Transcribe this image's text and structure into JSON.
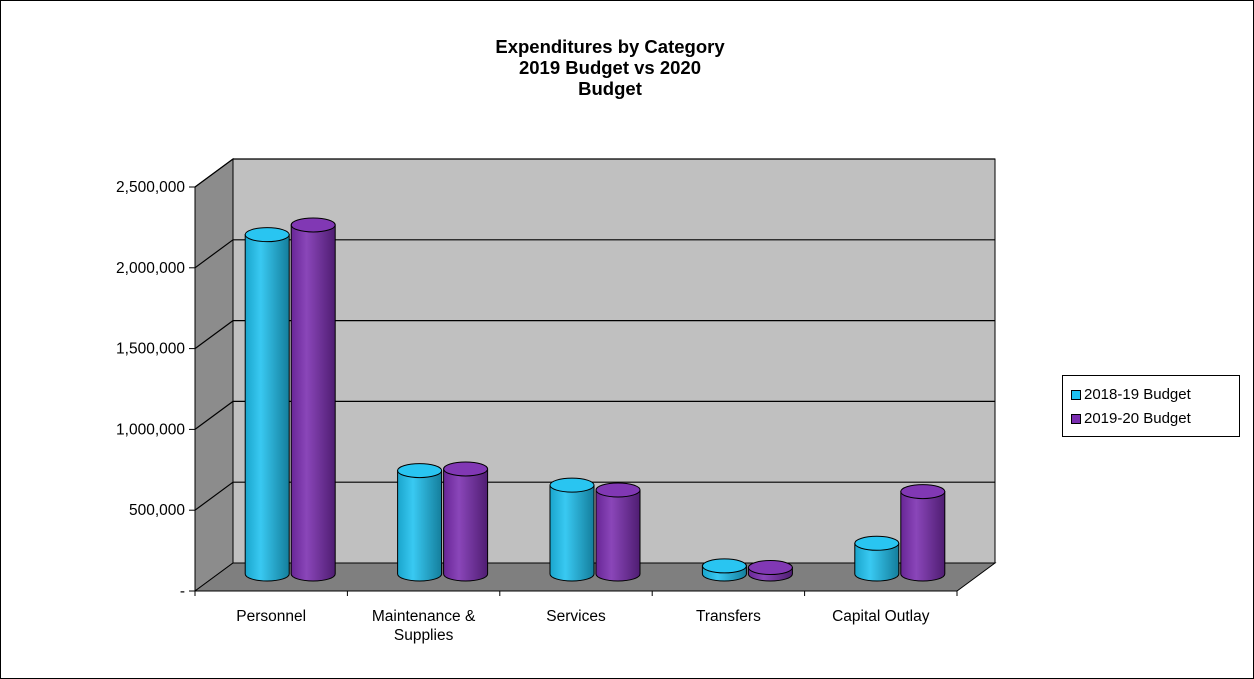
{
  "colors": {
    "series1": "#1ec2f0",
    "series2": "#7a2db0",
    "wall": "#c0c0c0",
    "side_wall": "#8c8c8c",
    "floor": "#7f7f7f"
  },
  "chart_data": {
    "type": "bar",
    "title": [
      "Expenditures by Category",
      "2019 Budget vs 2020",
      "Budget"
    ],
    "xlabel": "",
    "ylabel": "",
    "ylim": [
      0,
      2500000
    ],
    "y_ticks": [
      {
        "value": 0,
        "label": "-"
      },
      {
        "value": 500000,
        "label": "500,000"
      },
      {
        "value": 1000000,
        "label": "1,000,000"
      },
      {
        "value": 1500000,
        "label": "1,500,000"
      },
      {
        "value": 2000000,
        "label": "2,000,000"
      },
      {
        "value": 2500000,
        "label": "2,500,000"
      }
    ],
    "categories": [
      [
        "Personnel"
      ],
      [
        "Maintenance &",
        "Supplies"
      ],
      [
        "Services"
      ],
      [
        "Transfers"
      ],
      [
        "Capital Outlay"
      ]
    ],
    "series": [
      {
        "name": "2018-19 Budget",
        "values": [
          2100000,
          640000,
          550000,
          50000,
          190000
        ]
      },
      {
        "name": "2019-20 Budget",
        "values": [
          2160000,
          650000,
          520000,
          40000,
          510000
        ]
      }
    ],
    "grid": true,
    "legend_position": "right",
    "style": "3d-cylinder"
  }
}
